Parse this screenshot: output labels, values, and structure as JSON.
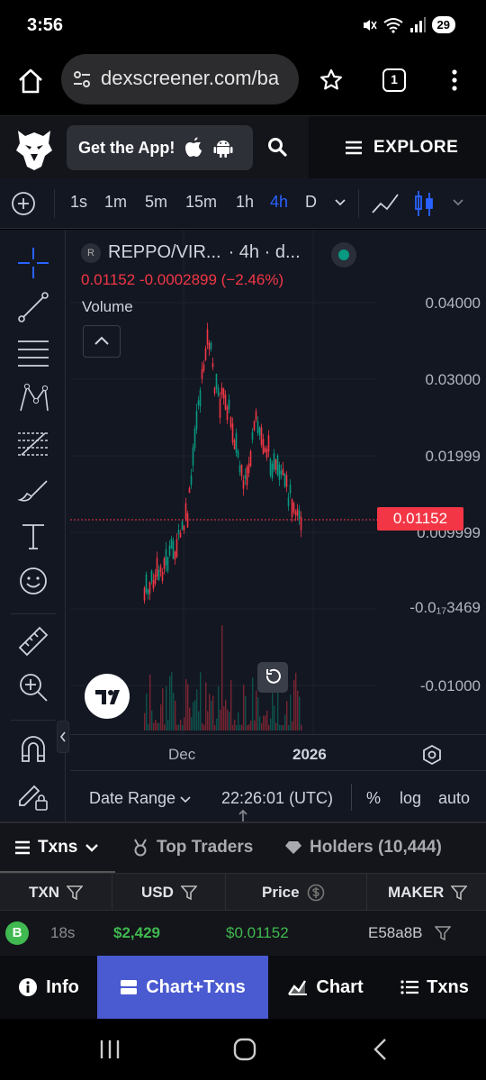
{
  "status": {
    "time": "3:56",
    "battery": "29"
  },
  "browser": {
    "url": "dexscreener.com/ba",
    "tab_count": "1"
  },
  "site": {
    "get_app_label": "Get the App!",
    "explore_label": "EXPLORE"
  },
  "intervals": [
    "1s",
    "1m",
    "5m",
    "15m",
    "1h",
    "4h",
    "D"
  ],
  "active_interval": "4h",
  "chart_header": {
    "badge": "R",
    "pair": "REPPO/VIR...",
    "timeframe": "· 4h · d...",
    "ohlc": "0.01152 -0.0002899 (−2.46%)",
    "volume_label": "Volume"
  },
  "price_axis": {
    "labels": [
      "0.04000",
      "0.03000",
      "0.01999",
      "0.009999",
      "-0.0₁₇3469",
      "-0.01000"
    ],
    "last_price": "0.01152"
  },
  "time_axis": {
    "labels": [
      "Dec",
      "2026"
    ]
  },
  "range_bar": {
    "date_range": "Date Range",
    "clock": "22:26:01 (UTC)",
    "percent": "%",
    "log": "log",
    "auto": "auto"
  },
  "lower_tabs": {
    "txns": "Txns",
    "top_traders": "Top Traders",
    "holders": "Holders (10,444)"
  },
  "table": {
    "headers": {
      "txn": "TXN",
      "usd": "USD",
      "price": "Price",
      "maker": "MAKER"
    },
    "rows": [
      {
        "type": "B",
        "age": "18s",
        "usd": "$2,429",
        "price": "$0.01152",
        "maker": "E58a8B"
      }
    ]
  },
  "bottom_nav": {
    "info": "Info",
    "chart_txns": "Chart+Txns",
    "chart": "Chart",
    "txns": "Txns"
  },
  "colors": {
    "up": "#089981",
    "down": "#f23645",
    "accent": "#2962ff",
    "active_tab": "#4a5ad0",
    "buy": "#3fb950"
  },
  "icons": [
    "home-icon",
    "tune-icon",
    "star-icon",
    "tabs-icon",
    "overflow-menu-icon",
    "eagle-logo-icon",
    "apple-icon",
    "android-icon",
    "search-icon",
    "menu-icon",
    "crosshair-icon",
    "trend-line-icon",
    "horizontal-lines-icon",
    "pattern-icon",
    "fib-icon",
    "brush-icon",
    "text-icon",
    "emoji-icon",
    "ruler-icon",
    "zoom-in-icon",
    "magnet-icon",
    "lock-pencil-icon",
    "info-icon",
    "chart-icon"
  ]
}
